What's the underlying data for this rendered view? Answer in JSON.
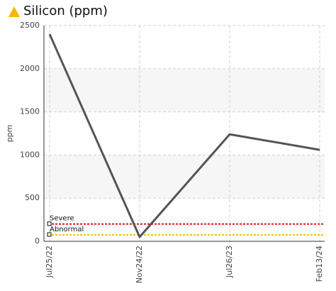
{
  "chart_data": {
    "type": "line",
    "title": "Silicon (ppm)",
    "y_label": "ppm",
    "categories": [
      "Jul25/22",
      "Nov24/22",
      "Jul26/23",
      "Feb13/24"
    ],
    "series": [
      {
        "name": "Silicon",
        "color": "#555555",
        "values": [
          2400,
          50,
          1240,
          1060
        ]
      }
    ],
    "ylim": [
      0,
      2500
    ],
    "yticks": [
      0,
      500,
      1000,
      1500,
      2000,
      2500
    ],
    "grid": true,
    "thresholds": [
      {
        "name": "Severe",
        "value": 200,
        "color": "#e01010"
      },
      {
        "name": "Abnormal",
        "value": 75,
        "color": "#f0c000"
      }
    ]
  }
}
